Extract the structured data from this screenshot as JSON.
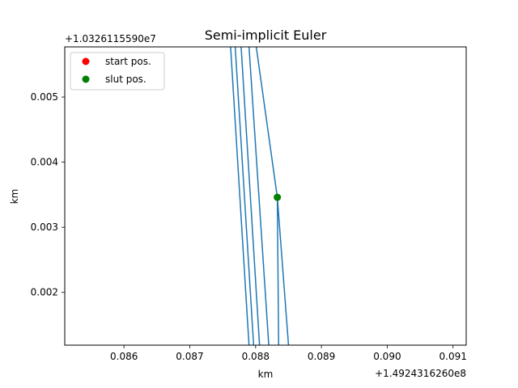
{
  "chart_data": {
    "type": "line",
    "title": "Semi-implicit Euler",
    "xlabel": "km",
    "ylabel": "km",
    "x_offset_label": "+1.4924316260e8",
    "y_offset_label": "+1.0326115590e7",
    "xlim": [
      0.0851,
      0.0912
    ],
    "ylim": [
      0.00119,
      0.00577
    ],
    "x_ticks": [
      0.086,
      0.087,
      0.088,
      0.089,
      0.09,
      0.091
    ],
    "x_tick_labels": [
      "0.086",
      "0.087",
      "0.088",
      "0.089",
      "0.090",
      "0.091"
    ],
    "y_ticks": [
      0.002,
      0.003,
      0.004,
      0.005
    ],
    "y_tick_labels": [
      "0.002",
      "0.003",
      "0.004",
      "0.005"
    ],
    "grid": false,
    "legend": {
      "placement": "top-left",
      "entries": [
        {
          "label": "start pos.",
          "color": "#ff0000"
        },
        {
          "label": "slut pos.",
          "color": "#008000"
        }
      ]
    },
    "series": [
      {
        "color": "#1f77b4",
        "points": [
          [
            0.08762,
            0.00577
          ],
          [
            0.0879,
            0.00119
          ]
        ]
      },
      {
        "color": "#1f77b4",
        "points": [
          [
            0.08769,
            0.00577
          ],
          [
            0.08797,
            0.00119
          ]
        ]
      },
      {
        "color": "#1f77b4",
        "points": [
          [
            0.08778,
            0.00577
          ],
          [
            0.08806,
            0.00119
          ]
        ]
      },
      {
        "color": "#1f77b4",
        "points": [
          [
            0.0879,
            0.00577
          ],
          [
            0.0882,
            0.00119
          ]
        ]
      },
      {
        "color": "#1f77b4",
        "points": [
          [
            0.08801,
            0.00577
          ],
          [
            0.08833,
            0.00346
          ],
          [
            0.08835,
            0.00119
          ]
        ]
      },
      {
        "color": "#1f77b4",
        "points": [
          [
            0.08833,
            0.00346
          ],
          [
            0.0885,
            0.00119
          ]
        ]
      }
    ],
    "markers": [
      {
        "name": "slut pos.",
        "color": "#008000",
        "x": 0.08833,
        "y": 0.00346
      }
    ]
  }
}
